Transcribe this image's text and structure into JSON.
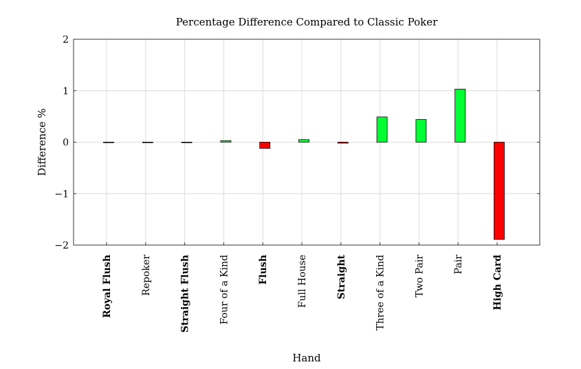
{
  "chart_data": {
    "type": "bar",
    "title": "Percentage Difference Compared to Classic Poker",
    "xlabel": "Hand",
    "ylabel": "Difference %",
    "ylim": [
      -2,
      2
    ],
    "yticks": [
      -2,
      -1,
      0,
      1,
      2
    ],
    "ytick_labels": [
      "−2",
      "−1",
      "0",
      "1",
      "2"
    ],
    "grid": true,
    "categories": [
      "Royal Flush",
      "Repoker",
      "Straight Flush",
      "Four of a Kind",
      "Flush",
      "Full House",
      "Straight",
      "Three of a Kind",
      "Two Pair",
      "Pair",
      "High Card"
    ],
    "bold_categories": [
      "Royal Flush",
      "Straight Flush",
      "Flush",
      "Straight",
      "High Card"
    ],
    "values": [
      -0.002,
      -0.002,
      -0.005,
      0.03,
      -0.12,
      0.05,
      -0.02,
      0.49,
      0.44,
      1.03,
      -1.89
    ],
    "colors": {
      "positive": "#00ff33",
      "negative": "#ff0000",
      "bar_outline": "#000000",
      "grid": "#dcdcdc",
      "axis": "#333333"
    }
  }
}
